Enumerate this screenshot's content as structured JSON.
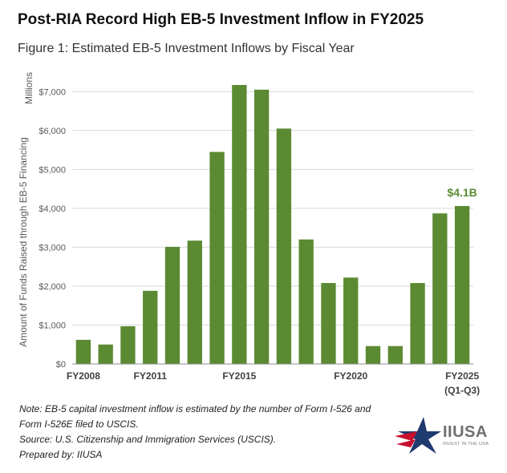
{
  "header": {
    "title": "Post-RIA Record High EB-5 Investment Inflow in FY2025",
    "subtitle": "Figure 1: Estimated EB-5 Investment Inflows by Fiscal Year"
  },
  "chart_data": {
    "type": "bar",
    "title": "Estimated EB-5 Investment Inflows by Fiscal Year",
    "ylabel": "Amount of Funds Raised through EB-5 Financing",
    "yunit_label": "Millions",
    "ylim": [
      0,
      7500
    ],
    "yticks": [
      0,
      1000,
      2000,
      3000,
      4000,
      5000,
      6000,
      7000
    ],
    "ytick_labels": [
      "$0",
      "$1,000",
      "$2,000",
      "$3,000",
      "$4,000",
      "$5,000",
      "$6,000",
      "$7,000"
    ],
    "grid": true,
    "bar_color": "#5b8a32",
    "annotation_color": "#5b8a32",
    "categories": [
      "FY2008",
      "FY2009",
      "FY2010",
      "FY2011",
      "FY2012",
      "FY2013",
      "FY2014",
      "FY2015",
      "FY2016",
      "FY2017",
      "FY2018",
      "FY2019",
      "FY2020",
      "FY2021",
      "FY2022",
      "FY2023",
      "FY2024",
      "FY2025"
    ],
    "values": [
      620,
      500,
      970,
      1880,
      3010,
      3170,
      5450,
      7170,
      7050,
      6050,
      3200,
      2080,
      2220,
      460,
      460,
      2080,
      3870,
      4060
    ],
    "xtick_labels": [
      {
        "index": 0,
        "label": "FY2008"
      },
      {
        "index": 3,
        "label": "FY2011"
      },
      {
        "index": 7,
        "label": "FY2015"
      },
      {
        "index": 12,
        "label": "FY2020"
      },
      {
        "index": 17,
        "label": "FY2025"
      }
    ],
    "xtick_sublabel": {
      "index": 17,
      "label": "(Q1-Q3)"
    },
    "annotation": {
      "index": 17,
      "label": "$4.1B"
    }
  },
  "notes": {
    "note_line1": "Note: EB-5 capital investment inflow is estimated by the number of Form I-526 and",
    "note_line2": "Form I-526E filed to USCIS.",
    "source": "Source: U.S. Citizenship and Immigration Services (USCIS).",
    "prepared_by": "Prepared by: IIUSA"
  },
  "logo": {
    "name": "IIUSA",
    "tagline": "INVEST IN THE USA",
    "colors": {
      "red": "#c8102e",
      "blue": "#1f3a6e"
    }
  }
}
